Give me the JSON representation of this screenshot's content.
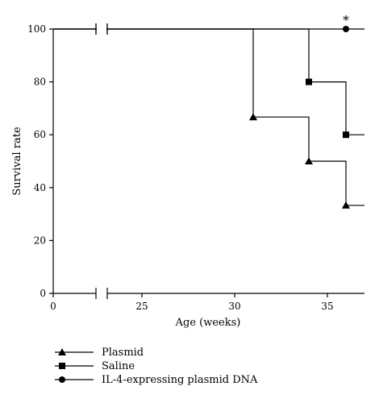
{
  "chart_data": {
    "type": "line",
    "step": true,
    "xlabel": "Age (weeks)",
    "ylabel": "Survival rate",
    "xlim": [
      0,
      37
    ],
    "ylim": [
      0,
      100
    ],
    "axis_break": {
      "x_from": 2.5,
      "x_to": 23
    },
    "xticks": [
      {
        "value": 0,
        "label": "0"
      },
      {
        "value": 25,
        "label": "25"
      },
      {
        "value": 30,
        "label": "30"
      },
      {
        "value": 35,
        "label": "35"
      }
    ],
    "yticks": [
      {
        "value": 0,
        "label": "0"
      },
      {
        "value": 20,
        "label": "20"
      },
      {
        "value": 40,
        "label": "40"
      },
      {
        "value": 60,
        "label": "60"
      },
      {
        "value": 80,
        "label": "80"
      },
      {
        "value": 100,
        "label": "100"
      }
    ],
    "legend_position": "bottom-left",
    "series": [
      {
        "name": "Plasmid",
        "marker": "triangle",
        "start": 100,
        "steps": [
          {
            "x": 31,
            "y": 66.7
          },
          {
            "x": 34,
            "y": 50
          },
          {
            "x": 36,
            "y": 33.3
          }
        ],
        "end_x": 37
      },
      {
        "name": "Saline",
        "marker": "square",
        "start": 100,
        "steps": [
          {
            "x": 34,
            "y": 80
          },
          {
            "x": 36,
            "y": 60
          }
        ],
        "end_x": 37
      },
      {
        "name": "IL-4-expressing plasmid DNA",
        "marker": "circle",
        "start": 100,
        "steps": [
          {
            "x": 36,
            "y": 100
          }
        ],
        "end_x": 37
      }
    ],
    "annotations": [
      {
        "text": "*",
        "x": 36,
        "y": 100
      }
    ]
  }
}
